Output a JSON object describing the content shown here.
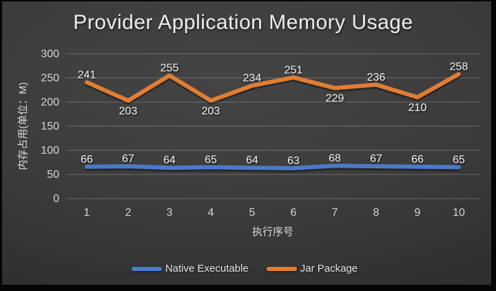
{
  "chart_data": {
    "type": "line",
    "title": "Provider Application Memory Usage",
    "xlabel": "执行序号",
    "ylabel": "内存占用(单位：M)",
    "categories": [
      "1",
      "2",
      "3",
      "4",
      "5",
      "6",
      "7",
      "8",
      "9",
      "10"
    ],
    "ylim": [
      0,
      300
    ],
    "yticks": [
      0,
      50,
      100,
      150,
      200,
      250,
      300
    ],
    "grid": true,
    "legend_position": "bottom",
    "series": [
      {
        "name": "Native Executable",
        "color": "#4a7bc9",
        "values": [
          66,
          67,
          64,
          65,
          64,
          63,
          68,
          67,
          66,
          65
        ],
        "label_side": [
          "up",
          "up",
          "up",
          "up",
          "up",
          "up",
          "up",
          "up",
          "up",
          "up"
        ]
      },
      {
        "name": "Jar Package",
        "color": "#e17d34",
        "values": [
          241,
          203,
          255,
          203,
          234,
          251,
          229,
          236,
          210,
          258
        ],
        "label_side": [
          "up",
          "down",
          "up",
          "down",
          "up",
          "up",
          "down",
          "up",
          "down",
          "up"
        ]
      }
    ]
  }
}
